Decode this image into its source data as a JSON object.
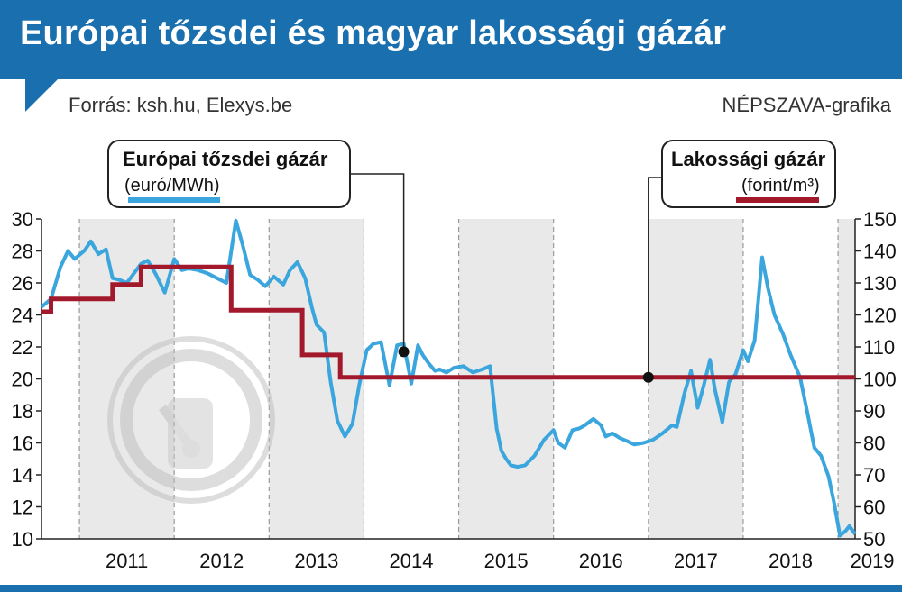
{
  "header": {
    "title": "Európai tőzsdei és magyar lakossági gázár",
    "source": "Forrás: ksh.hu, Elexys.be",
    "credit": "NÉPSZAVA-grafika"
  },
  "colors": {
    "header_bg": "#1a6fae",
    "series_blue": "#3aa6dd",
    "series_red": "#a3192c",
    "shade": "#e9e9e9"
  },
  "chart_data": {
    "type": "line",
    "x_ticks": [
      "2011",
      "2012",
      "2013",
      "2014",
      "2015",
      "2016",
      "2017",
      "2018",
      "2019"
    ],
    "xlim": [
      2010.6,
      2019.18
    ],
    "shaded_years": [
      2011,
      2013,
      2015,
      2017,
      2019
    ],
    "grid": "vertical dashed lines between years",
    "y_left": {
      "lim": [
        10,
        30
      ],
      "ticks": [
        10,
        12,
        14,
        16,
        18,
        20,
        22,
        24,
        26,
        28,
        30
      ]
    },
    "y_right": {
      "lim": [
        50,
        150
      ],
      "ticks": [
        50,
        60,
        70,
        80,
        90,
        100,
        110,
        120,
        130,
        140,
        150
      ]
    },
    "series": [
      {
        "name": "Európai tőzsdei gázár",
        "unit": "(euró/MWh)",
        "axis": "left",
        "color": "#3aa6dd",
        "x": [
          2010.6,
          2010.7,
          2010.8,
          2010.88,
          2010.95,
          2011.05,
          2011.12,
          2011.2,
          2011.28,
          2011.35,
          2011.42,
          2011.5,
          2011.55,
          2011.65,
          2011.72,
          2011.8,
          2011.9,
          2012.0,
          2012.08,
          2012.15,
          2012.25,
          2012.35,
          2012.45,
          2012.55,
          2012.65,
          2012.72,
          2012.8,
          2012.88,
          2012.96,
          2013.05,
          2013.15,
          2013.22,
          2013.3,
          2013.38,
          2013.45,
          2013.5,
          2013.58,
          2013.65,
          2013.72,
          2013.8,
          2013.88,
          2013.95,
          2014.03,
          2014.1,
          2014.18,
          2014.27,
          2014.35,
          2014.42,
          2014.5,
          2014.57,
          2014.62,
          2014.68,
          2014.75,
          2014.8,
          2014.87,
          2014.95,
          2015.05,
          2015.15,
          2015.25,
          2015.33,
          2015.4,
          2015.45,
          2015.5,
          2015.55,
          2015.62,
          2015.7,
          2015.8,
          2015.9,
          2016.0,
          2016.05,
          2016.12,
          2016.2,
          2016.27,
          2016.33,
          2016.42,
          2016.5,
          2016.55,
          2016.62,
          2016.7,
          2016.78,
          2016.85,
          2016.95,
          2017.05,
          2017.15,
          2017.25,
          2017.3,
          2017.38,
          2017.45,
          2017.52,
          2017.58,
          2017.65,
          2017.7,
          2017.78,
          2017.85,
          2017.92,
          2018.0,
          2018.05,
          2018.12,
          2018.2,
          2018.26,
          2018.33,
          2018.42,
          2018.5,
          2018.6,
          2018.68,
          2018.75,
          2018.82,
          2018.9,
          2018.96,
          2019.02,
          2019.08,
          2019.12,
          2019.18
        ],
        "y": [
          24.5,
          25.0,
          27.0,
          28.0,
          27.5,
          28.0,
          28.6,
          27.8,
          28.1,
          26.3,
          26.2,
          26.0,
          26.4,
          27.2,
          27.4,
          26.6,
          25.4,
          27.5,
          26.8,
          26.9,
          26.8,
          26.6,
          26.3,
          26.0,
          29.9,
          28.4,
          26.5,
          26.2,
          25.8,
          26.4,
          25.9,
          26.8,
          27.3,
          26.3,
          24.5,
          23.4,
          22.9,
          19.8,
          17.4,
          16.4,
          17.2,
          19.6,
          21.8,
          22.2,
          22.3,
          19.6,
          22.1,
          22.2,
          19.7,
          22.1,
          21.5,
          21.0,
          20.5,
          20.6,
          20.4,
          20.7,
          20.8,
          20.4,
          20.6,
          20.8,
          16.9,
          15.5,
          15.0,
          14.6,
          14.5,
          14.6,
          15.2,
          16.2,
          16.8,
          16.0,
          15.7,
          16.8,
          16.9,
          17.1,
          17.5,
          17.1,
          16.4,
          16.6,
          16.3,
          16.1,
          15.9,
          16.0,
          16.2,
          16.6,
          17.1,
          17.0,
          19.1,
          20.5,
          18.2,
          19.5,
          21.2,
          19.4,
          17.3,
          19.8,
          20.3,
          21.8,
          21.1,
          22.4,
          27.6,
          25.7,
          24.0,
          22.8,
          21.5,
          20.1,
          17.8,
          15.7,
          15.2,
          13.9,
          12.2,
          10.2,
          10.5,
          10.8,
          10.3
        ]
      },
      {
        "name": "Lakossági gázár",
        "unit": "(forint/m³)",
        "axis": "right",
        "color": "#a3192c",
        "x": [
          2010.6,
          2010.7,
          2010.7,
          2011.35,
          2011.35,
          2011.6,
          2011.6,
          2011.65,
          2011.65,
          2012.6,
          2012.6,
          2013.35,
          2013.35,
          2013.75,
          2013.75,
          2019.18
        ],
        "y": [
          121,
          121,
          125,
          125,
          129.5,
          129.5,
          129.5,
          129.5,
          135,
          135,
          121.5,
          121.5,
          107.5,
          107.5,
          100.5,
          100.5
        ]
      }
    ],
    "annotations": [
      {
        "series": "Európai tőzsdei gázár",
        "x": 2014.42,
        "y": 21.7
      },
      {
        "series": "Lakossági gázár",
        "x": 2017.0,
        "y": 100.5
      }
    ]
  }
}
